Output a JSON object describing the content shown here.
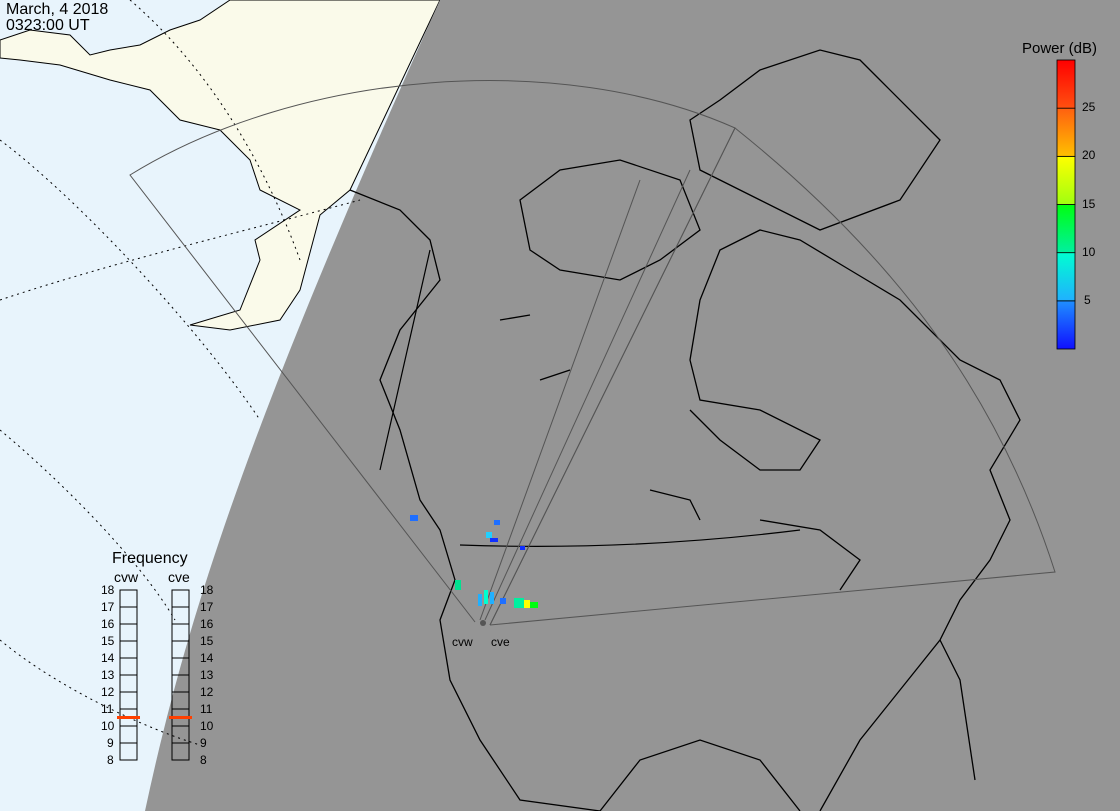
{
  "header": {
    "date": "March, 4 2018",
    "time": "0323:00 UT"
  },
  "colors": {
    "day_ocean": "#e8f4fc",
    "day_land": "#fafaea",
    "night": "#959595",
    "freq_marker": "#ff4000"
  },
  "radars": [
    {
      "name": "cvw",
      "frequency_mhz": 10.5
    },
    {
      "name": "cve",
      "frequency_mhz": 10.5
    }
  ],
  "colorbar": {
    "title": "Power (dB)",
    "ticks": [
      "25",
      "20",
      "15",
      "10",
      "5"
    ],
    "range": [
      0,
      30
    ],
    "segments": [
      "#1010ff-#1f8fff",
      "#20b0ff-#00ffd0",
      "#00f0a0-#00ff10",
      "#a0ff10-#ffff00",
      "#ffc000-#ff6010",
      "#ff5010-#ff0000"
    ]
  },
  "frequency": {
    "title": "Frequency",
    "ticks": [
      "18",
      "17",
      "16",
      "15",
      "14",
      "13",
      "12",
      "11",
      "10",
      "9",
      "8"
    ],
    "range": [
      8,
      18
    ]
  }
}
